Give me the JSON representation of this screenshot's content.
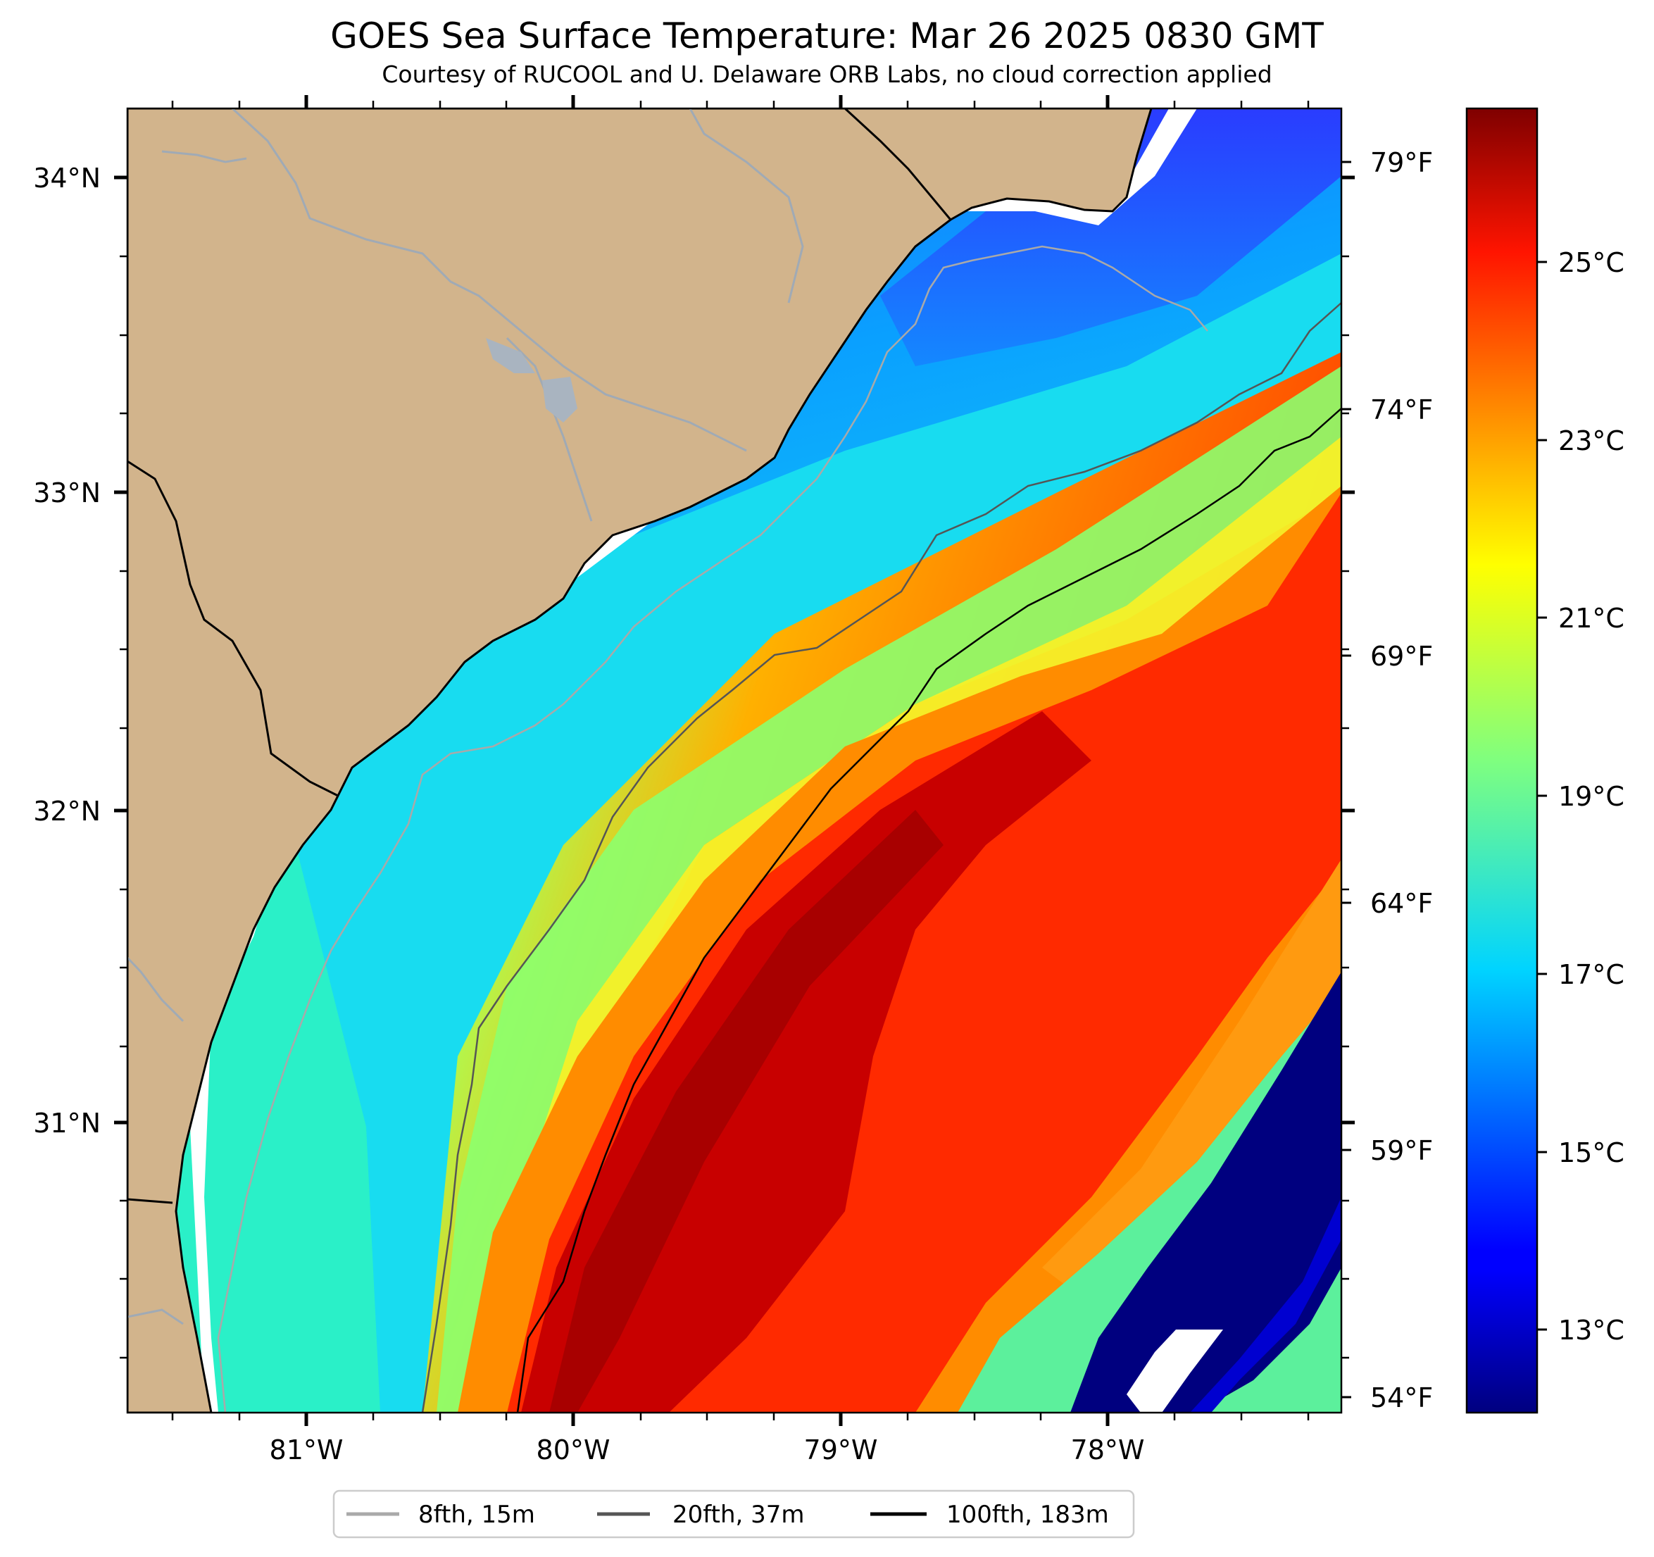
{
  "title": "GOES Sea Surface Temperature: Mar 26 2025 0830 GMT",
  "subtitle": "Courtesy of RUCOOL and U. Delaware ORB Labs, no cloud correction applied",
  "map": {
    "lon_range": [
      -81.67,
      -77.1
    ],
    "lat_range": [
      30.1,
      34.23
    ],
    "lat_ticks": [
      "34°N",
      "33°N",
      "32°N",
      "31°N"
    ],
    "lon_ticks": [
      "81°W",
      "80°W",
      "79°W",
      "78°W"
    ],
    "land_color": "#d2b48c",
    "no_data_color": "#ffffff"
  },
  "fahrenheit_axis": {
    "ticks": [
      "79°F",
      "74°F",
      "69°F",
      "64°F",
      "59°F",
      "54°F"
    ]
  },
  "colorbar": {
    "colormap": "jet",
    "range_c": [
      12,
      27
    ],
    "ticks": [
      "25°C",
      "23°C",
      "21°C",
      "19°C",
      "17°C",
      "15°C",
      "13°C"
    ]
  },
  "legend": {
    "items": [
      {
        "label": "8fth, 15m",
        "color": "#a9a9a9"
      },
      {
        "label": "20fth, 37m",
        "color": "#555555"
      },
      {
        "label": "100fth, 183m",
        "color": "#000000"
      }
    ]
  }
}
